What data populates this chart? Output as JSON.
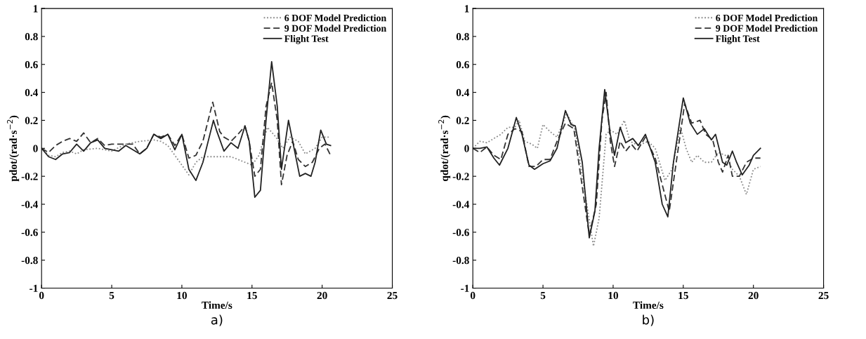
{
  "chart_data": [
    {
      "type": "line",
      "xlabel": "Time/s",
      "ylabel": "pdot/(rad·s$^{−2}$)",
      "xlim": [
        0,
        25
      ],
      "ylim": [
        -1,
        1
      ],
      "xticks": [
        0,
        5,
        10,
        15,
        20,
        25
      ],
      "yticks": [
        -1,
        -0.8,
        -0.6,
        -0.4,
        -0.2,
        0,
        0.2,
        0.4,
        0.6,
        0.8,
        1
      ],
      "grid": false,
      "legend": "top right",
      "annotations": [
        "a)"
      ],
      "series": [
        {
          "name": "6 DOF Model Prediction",
          "color": "#888888",
          "line_style": "dotted",
          "x": [
            0,
            0.5,
            1,
            1.5,
            2,
            2.5,
            3,
            4,
            5,
            6,
            7,
            8,
            8.5,
            9,
            9.5,
            10,
            10.5,
            11,
            11.5,
            12.5,
            13.5,
            14.5,
            15,
            15.5,
            16.1,
            16.7,
            17.2,
            17.7,
            18.3,
            18.8,
            19.5,
            20,
            20.6
          ],
          "values": [
            0,
            -0.05,
            -0.06,
            -0.03,
            -0.02,
            -0.04,
            -0.01,
            0.0,
            -0.02,
            0.03,
            0.05,
            0.06,
            0.05,
            0.02,
            -0.05,
            -0.12,
            -0.19,
            -0.1,
            -0.06,
            -0.06,
            -0.06,
            -0.1,
            -0.12,
            -0.05,
            0.15,
            0.08,
            0.0,
            0.08,
            0.05,
            -0.04,
            0.0,
            0.08,
            0.08
          ]
        },
        {
          "name": "9 DOF Model Prediction",
          "color": "#333333",
          "line_style": "dashed",
          "x": [
            0,
            0.5,
            1,
            1.5,
            2,
            2.5,
            3,
            3.5,
            4,
            4.5,
            5,
            5.5,
            6,
            6.5,
            7,
            7.5,
            8,
            8.5,
            9,
            9.5,
            10,
            10.5,
            11,
            11.5,
            12.2,
            12.7,
            13,
            13.5,
            14,
            14.5,
            14.8,
            15.2,
            15.6,
            16,
            16.4,
            16.8,
            17.1,
            17.5,
            17.9,
            18.3,
            18.8,
            19.3,
            19.8,
            20.2,
            20.6
          ],
          "values": [
            0,
            -0.03,
            0.02,
            0.05,
            0.07,
            0.05,
            0.11,
            0.04,
            0.07,
            0.02,
            0.03,
            0.03,
            0.03,
            0.03,
            -0.04,
            0.0,
            0.1,
            0.08,
            0.1,
            0.02,
            0.1,
            -0.07,
            -0.05,
            0.05,
            0.33,
            0.12,
            0.08,
            0.05,
            0.1,
            0.16,
            0.05,
            -0.2,
            -0.15,
            0.3,
            0.47,
            0.2,
            -0.26,
            -0.05,
            0.05,
            -0.08,
            -0.13,
            -0.1,
            0.0,
            0.03,
            -0.05
          ]
        },
        {
          "name": "Flight Test",
          "color": "#222222",
          "line_style": "solid",
          "x": [
            0,
            0.5,
            1,
            1.5,
            2,
            2.5,
            3,
            3.5,
            4,
            4.5,
            5,
            5.5,
            6,
            6.5,
            7,
            7.5,
            8,
            8.5,
            9,
            9.5,
            10,
            10.5,
            11,
            11.5,
            12,
            12.25,
            12.5,
            13,
            13.5,
            14,
            14.5,
            14.8,
            15.2,
            15.6,
            16,
            16.4,
            16.8,
            17.1,
            17.6,
            18,
            18.4,
            18.8,
            19.2,
            19.5,
            19.9,
            20.3,
            20.6
          ],
          "values": [
            0,
            -0.06,
            -0.08,
            -0.04,
            -0.03,
            0.03,
            -0.02,
            0.04,
            0.06,
            0.0,
            -0.01,
            -0.02,
            0.02,
            -0.01,
            -0.04,
            0.0,
            0.1,
            0.07,
            0.1,
            -0.01,
            0.1,
            -0.15,
            -0.23,
            -0.1,
            0.1,
            0.2,
            0.12,
            -0.02,
            0.04,
            0.0,
            0.16,
            0.05,
            -0.35,
            -0.3,
            0.2,
            0.62,
            0.3,
            -0.15,
            0.2,
            0.0,
            -0.2,
            -0.18,
            -0.2,
            -0.1,
            0.13,
            0.03,
            0.02
          ]
        }
      ]
    },
    {
      "type": "line",
      "xlabel": "Time/s",
      "ylabel": "qdot/(rad·s$^{−2}$)",
      "xlim": [
        0,
        25
      ],
      "ylim": [
        -1,
        1
      ],
      "xticks": [
        0,
        5,
        10,
        15,
        20,
        25
      ],
      "yticks": [
        -1,
        -0.8,
        -0.6,
        -0.4,
        -0.2,
        0,
        0.2,
        0.4,
        0.6,
        0.8,
        1
      ],
      "grid": false,
      "legend": "top right",
      "annotations": [
        "b)"
      ],
      "series": [
        {
          "name": "6 DOF Model Prediction",
          "color": "#888888",
          "line_style": "dotted",
          "x": [
            0,
            0.5,
            1,
            1.5,
            2,
            2.5,
            3,
            3.3,
            3.7,
            4.2,
            4.6,
            5.0,
            5.5,
            6,
            6.7,
            7.3,
            7.8,
            8.6,
            9.0,
            9.5,
            9.8,
            10.3,
            10.8,
            11.2,
            11.8,
            12.5,
            13.0,
            13.7,
            14.2,
            14.8,
            15.2,
            15.6,
            16.0,
            16.5,
            17,
            17.5,
            18,
            18.5,
            19,
            19.5,
            20,
            20.5
          ],
          "values": [
            0,
            0.05,
            0.04,
            0.07,
            0.1,
            0.15,
            0.15,
            0.2,
            0.05,
            0.03,
            0.0,
            0.17,
            0.12,
            0.08,
            0.25,
            0.13,
            -0.2,
            -0.7,
            -0.5,
            0.1,
            0.13,
            0.1,
            0.2,
            0.05,
            0.02,
            0.05,
            0.0,
            -0.23,
            -0.15,
            0.15,
            0.0,
            -0.1,
            -0.05,
            -0.1,
            -0.1,
            -0.03,
            -0.05,
            -0.15,
            -0.2,
            -0.33,
            -0.15,
            -0.13
          ]
        },
        {
          "name": "9 DOF Model Prediction",
          "color": "#333333",
          "line_style": "dashed",
          "x": [
            0,
            0.5,
            1,
            1.5,
            2,
            2.5,
            3,
            3.5,
            4,
            4.5,
            5,
            5.5,
            6,
            6.6,
            7.2,
            8.3,
            8.8,
            9.2,
            9.5,
            9.8,
            10.1,
            10.5,
            10.9,
            11.3,
            11.7,
            12.3,
            13,
            14,
            14.5,
            15.1,
            15.6,
            16.2,
            16.6,
            17.1,
            17.5,
            17.8,
            18.2,
            18.5,
            19,
            19.5,
            20,
            20.5
          ],
          "values": [
            0,
            -0.03,
            0.01,
            -0.05,
            -0.08,
            0.1,
            0.14,
            0.12,
            -0.13,
            -0.13,
            -0.08,
            -0.08,
            0.05,
            0.18,
            0.14,
            -0.62,
            -0.4,
            0.2,
            0.4,
            0.05,
            -0.13,
            0.05,
            -0.02,
            0.03,
            -0.02,
            0.08,
            -0.07,
            -0.45,
            -0.1,
            0.32,
            0.18,
            0.2,
            0.1,
            0.06,
            -0.1,
            -0.17,
            -0.05,
            -0.2,
            -0.2,
            -0.1,
            -0.07,
            -0.07
          ]
        },
        {
          "name": "Flight Test",
          "color": "#222222",
          "line_style": "solid",
          "x": [
            0,
            0.5,
            1,
            1.5,
            1.9,
            2.5,
            3.1,
            3.5,
            4,
            4.4,
            5,
            5.5,
            6,
            6.6,
            7,
            7.3,
            7.8,
            8.3,
            8.7,
            9,
            9.4,
            9.8,
            10.1,
            10.5,
            10.9,
            11.4,
            11.8,
            12.3,
            13,
            13.5,
            13.9,
            14.3,
            15.0,
            15.5,
            16,
            16.5,
            17,
            17.3,
            17.8,
            18.1,
            18.5,
            18.8,
            19.2,
            19.7,
            20.0,
            20.5
          ],
          "values": [
            0,
            0.0,
            0.01,
            -0.07,
            -0.12,
            0.0,
            0.22,
            0.1,
            -0.12,
            -0.15,
            -0.11,
            -0.09,
            0.0,
            0.27,
            0.17,
            0.16,
            -0.1,
            -0.64,
            -0.45,
            0.0,
            0.42,
            0.1,
            -0.05,
            0.15,
            0.04,
            0.07,
            0.02,
            0.1,
            -0.1,
            -0.4,
            -0.49,
            -0.1,
            0.36,
            0.18,
            0.1,
            0.14,
            0.06,
            0.1,
            -0.1,
            -0.12,
            -0.02,
            -0.1,
            -0.19,
            -0.12,
            -0.05,
            0.0
          ]
        }
      ]
    }
  ]
}
